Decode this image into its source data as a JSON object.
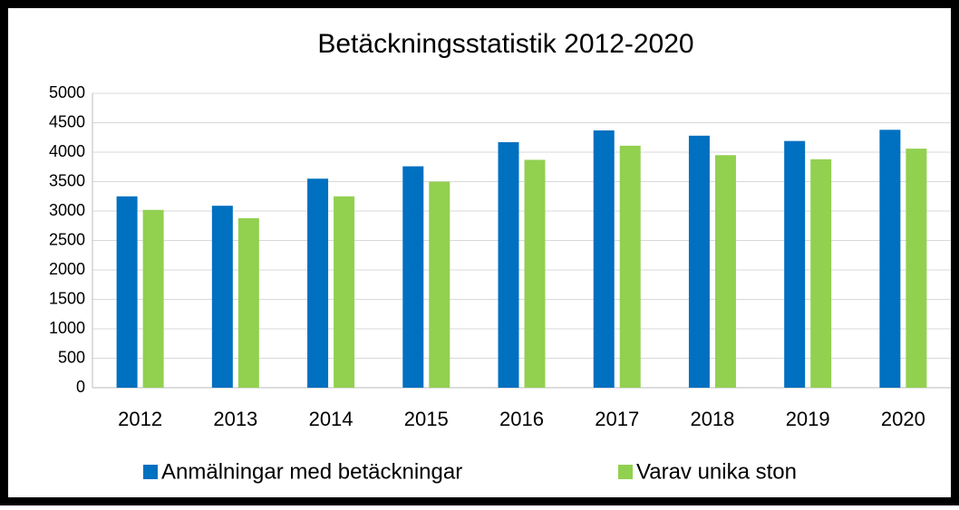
{
  "chart_data": {
    "type": "bar",
    "title": "Betäckningsstatistik 2012-2020",
    "categories": [
      "2012",
      "2013",
      "2014",
      "2015",
      "2016",
      "2017",
      "2018",
      "2019",
      "2020"
    ],
    "series": [
      {
        "name": "Anmälningar med betäckningar",
        "color": "#0070c0",
        "values": [
          3250,
          3090,
          3550,
          3760,
          4170,
          4370,
          4280,
          4190,
          4380
        ]
      },
      {
        "name": "Varav unika ston",
        "color": "#92d050",
        "values": [
          3020,
          2880,
          3250,
          3500,
          3870,
          4110,
          3950,
          3880,
          4060
        ]
      }
    ],
    "ylim": [
      0,
      5000
    ],
    "yticks": [
      0,
      500,
      1000,
      1500,
      2000,
      2500,
      3000,
      3500,
      4000,
      4500,
      5000
    ],
    "grid": true,
    "legend": "bottom"
  }
}
